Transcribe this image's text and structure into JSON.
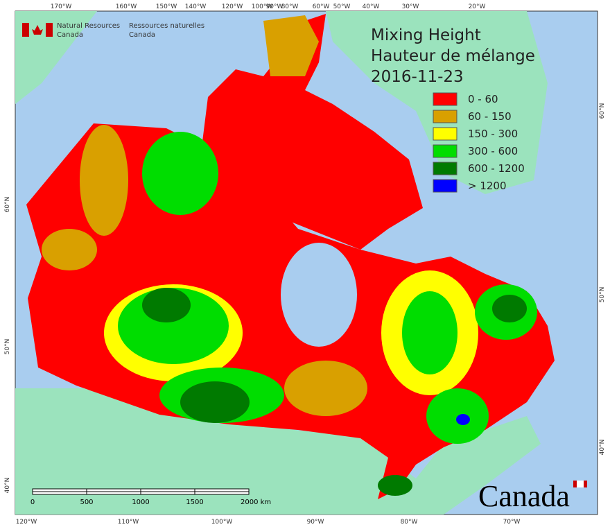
{
  "header": {
    "agency_en": [
      "Natural Resources",
      "Canada"
    ],
    "agency_fr": [
      "Ressources naturelles",
      "Canada"
    ],
    "title_en": "Mixing Height",
    "title_fr": "Hauteur de mélange",
    "date": "2016-11-23"
  },
  "legend": [
    {
      "label": "0 - 60",
      "color": "#ff0000"
    },
    {
      "label": "60 - 150",
      "color": "#d9a000"
    },
    {
      "label": "150 - 300",
      "color": "#ffff00"
    },
    {
      "label": "300 - 600",
      "color": "#00dd00"
    },
    {
      "label": "600 - 1200",
      "color": "#007a00"
    },
    {
      "label": "> 1200",
      "color": "#0000ff"
    }
  ],
  "graticule": {
    "top": [
      "170°W",
      "160°W",
      "150°W",
      "140°W",
      "120°W",
      "100°W",
      "90°W",
      "80°W",
      "60°W",
      "50°W",
      "40°W",
      "30°W",
      "20°W"
    ],
    "bottom": [
      "120°W",
      "110°W",
      "100°W",
      "90°W",
      "80°W",
      "70°W"
    ],
    "left": [
      "60°N",
      "50°N",
      "40°N"
    ],
    "right": [
      "60°N",
      "50°N",
      "40°N"
    ]
  },
  "scale_bar": [
    "0",
    "500",
    "1000",
    "1500",
    "2000 km"
  ],
  "wordmark": "Canada"
}
